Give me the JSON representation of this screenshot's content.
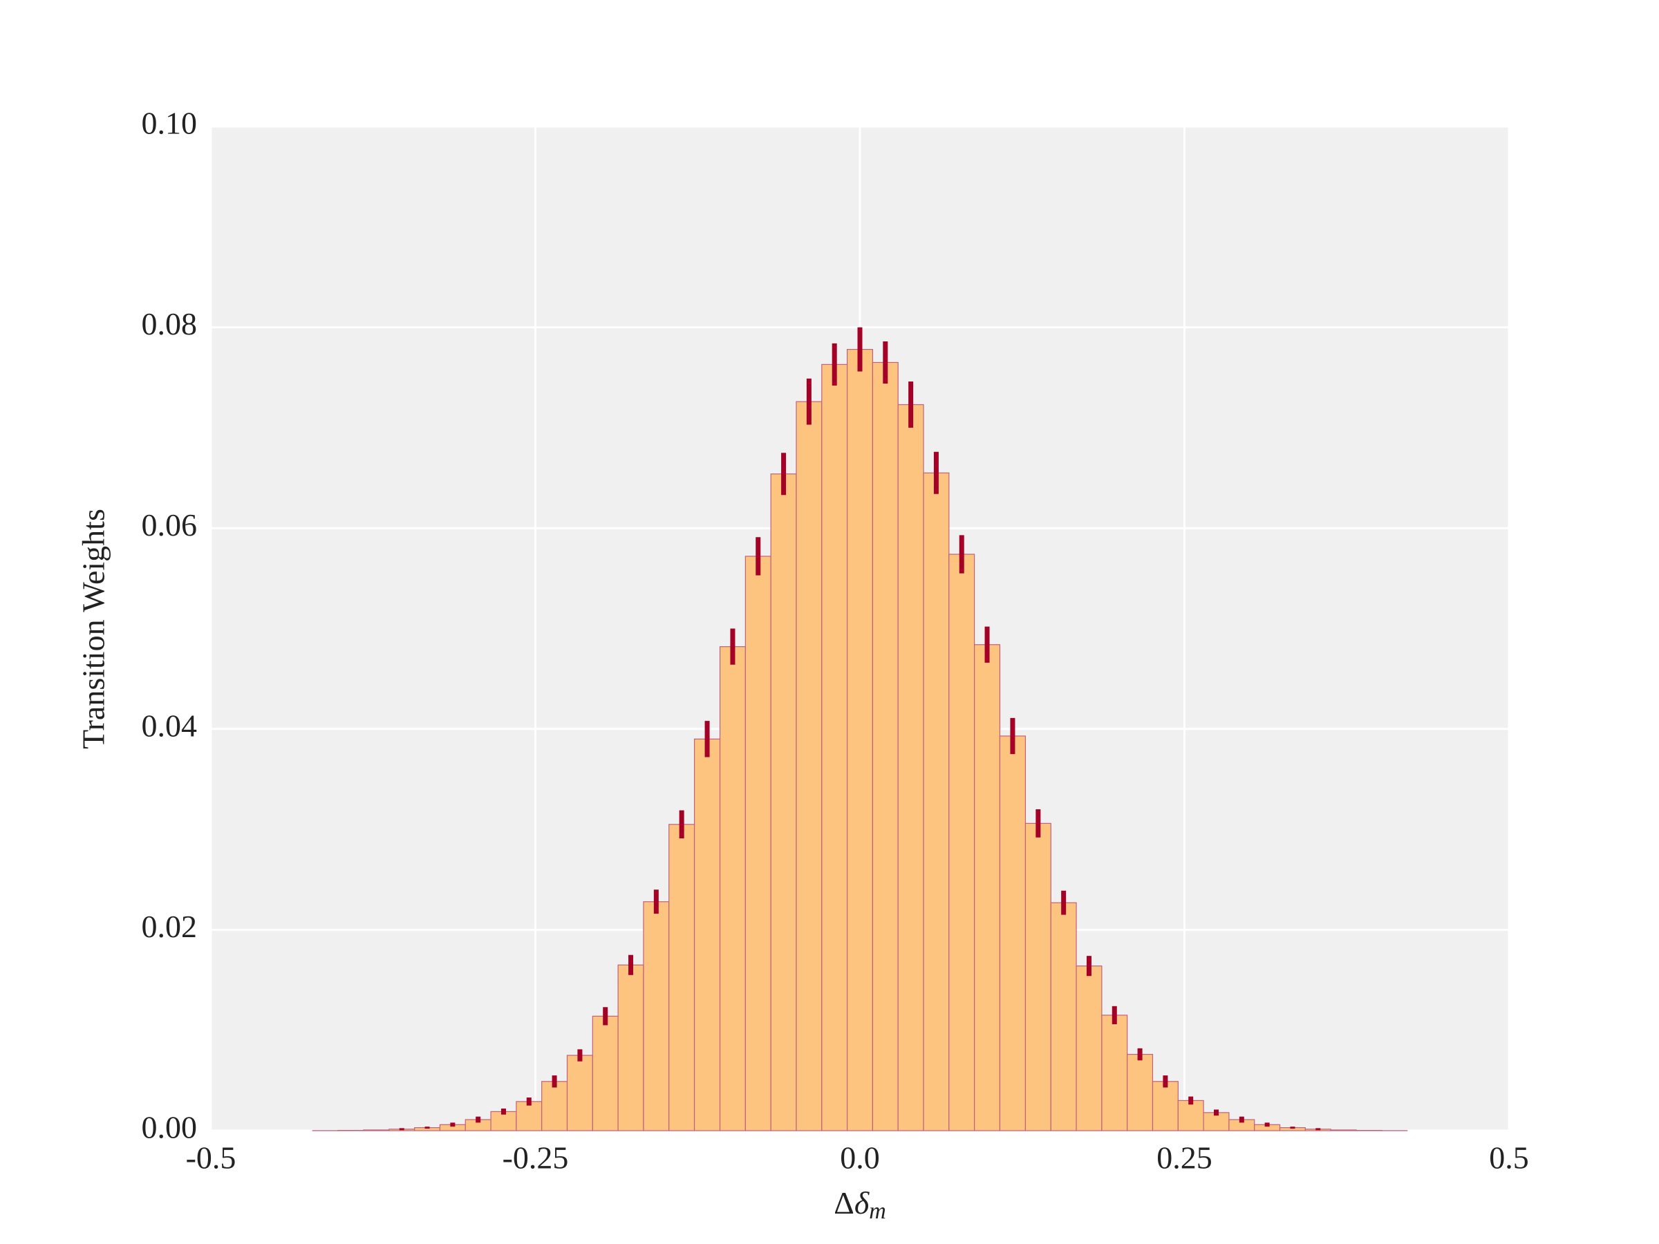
{
  "chart_data": {
    "type": "histogram",
    "ylabel": "Transition Weights",
    "xlabel": [
      "Δ",
      "δ",
      "m"
    ],
    "bins": [
      -0.5,
      -0.4804,
      -0.4608,
      -0.4412,
      -0.4216,
      -0.402,
      -0.3824,
      -0.3627,
      -0.3431,
      -0.3235,
      -0.3039,
      -0.2843,
      -0.2647,
      -0.2451,
      -0.2255,
      -0.2059,
      -0.1863,
      -0.1667,
      -0.1471,
      -0.1275,
      -0.1078,
      -0.0882,
      -0.0686,
      -0.049,
      -0.0294,
      -0.0098,
      0.0098,
      0.0294,
      0.049,
      0.0686,
      0.0882,
      0.1078,
      0.1275,
      0.1471,
      0.1667,
      0.1863,
      0.2059,
      0.2255,
      0.2451,
      0.2647,
      0.2843,
      0.3039,
      0.3235,
      0.3431,
      0.3627,
      0.3824,
      0.402,
      0.4216,
      0.4412,
      0.4608,
      0.4804,
      0.5
    ],
    "counts": [
      0,
      0,
      0,
      0,
      1e-05,
      3e-05,
      7e-05,
      0.00015,
      0.0003,
      0.0006,
      0.0011,
      0.0019,
      0.0029,
      0.0049,
      0.0075,
      0.0114,
      0.0165,
      0.0228,
      0.0305,
      0.039,
      0.0482,
      0.0572,
      0.0654,
      0.0726,
      0.0763,
      0.0778,
      0.0765,
      0.0723,
      0.0655,
      0.0574,
      0.0484,
      0.0393,
      0.0306,
      0.0227,
      0.0164,
      0.0115,
      0.0076,
      0.0049,
      0.003,
      0.0018,
      0.0011,
      0.0006,
      0.0003,
      0.00015,
      7e-05,
      3e-05,
      1e-05,
      0,
      0,
      0,
      0
    ],
    "errors": [
      0,
      0,
      0,
      0,
      0,
      0,
      0,
      0.0001,
      0.0001,
      0.0002,
      0.0003,
      0.0003,
      0.0004,
      0.0006,
      0.0006,
      0.0009,
      0.001,
      0.0012,
      0.0014,
      0.0018,
      0.0018,
      0.0019,
      0.0021,
      0.0023,
      0.0021,
      0.0022,
      0.0021,
      0.0023,
      0.0021,
      0.0019,
      0.0018,
      0.0018,
      0.0014,
      0.0012,
      0.001,
      0.0009,
      0.0006,
      0.0006,
      0.0004,
      0.0003,
      0.0003,
      0.0002,
      0.0001,
      0.0001,
      0,
      0,
      0,
      0,
      0,
      0,
      0
    ],
    "color": "#fdc47f",
    "edgecolor": "#c2607a",
    "error_color": "#a50026",
    "xlim": [
      -0.5,
      0.5
    ],
    "ylim": [
      0,
      0.1
    ],
    "xticks": [
      -0.5,
      -0.25,
      {
        "value": 0,
        "label": "0.0"
      },
      0.25,
      0.5
    ],
    "yticks": [
      {
        "value": 0,
        "label": "0.00"
      },
      {
        "value": 0.02,
        "label": "0.02"
      },
      {
        "value": 0.04,
        "label": "0.04"
      },
      {
        "value": 0.06,
        "label": "0.06"
      },
      {
        "value": 0.08,
        "label": "0.08"
      },
      {
        "value": 0.1,
        "label": "0.10"
      }
    ],
    "grid": true
  }
}
